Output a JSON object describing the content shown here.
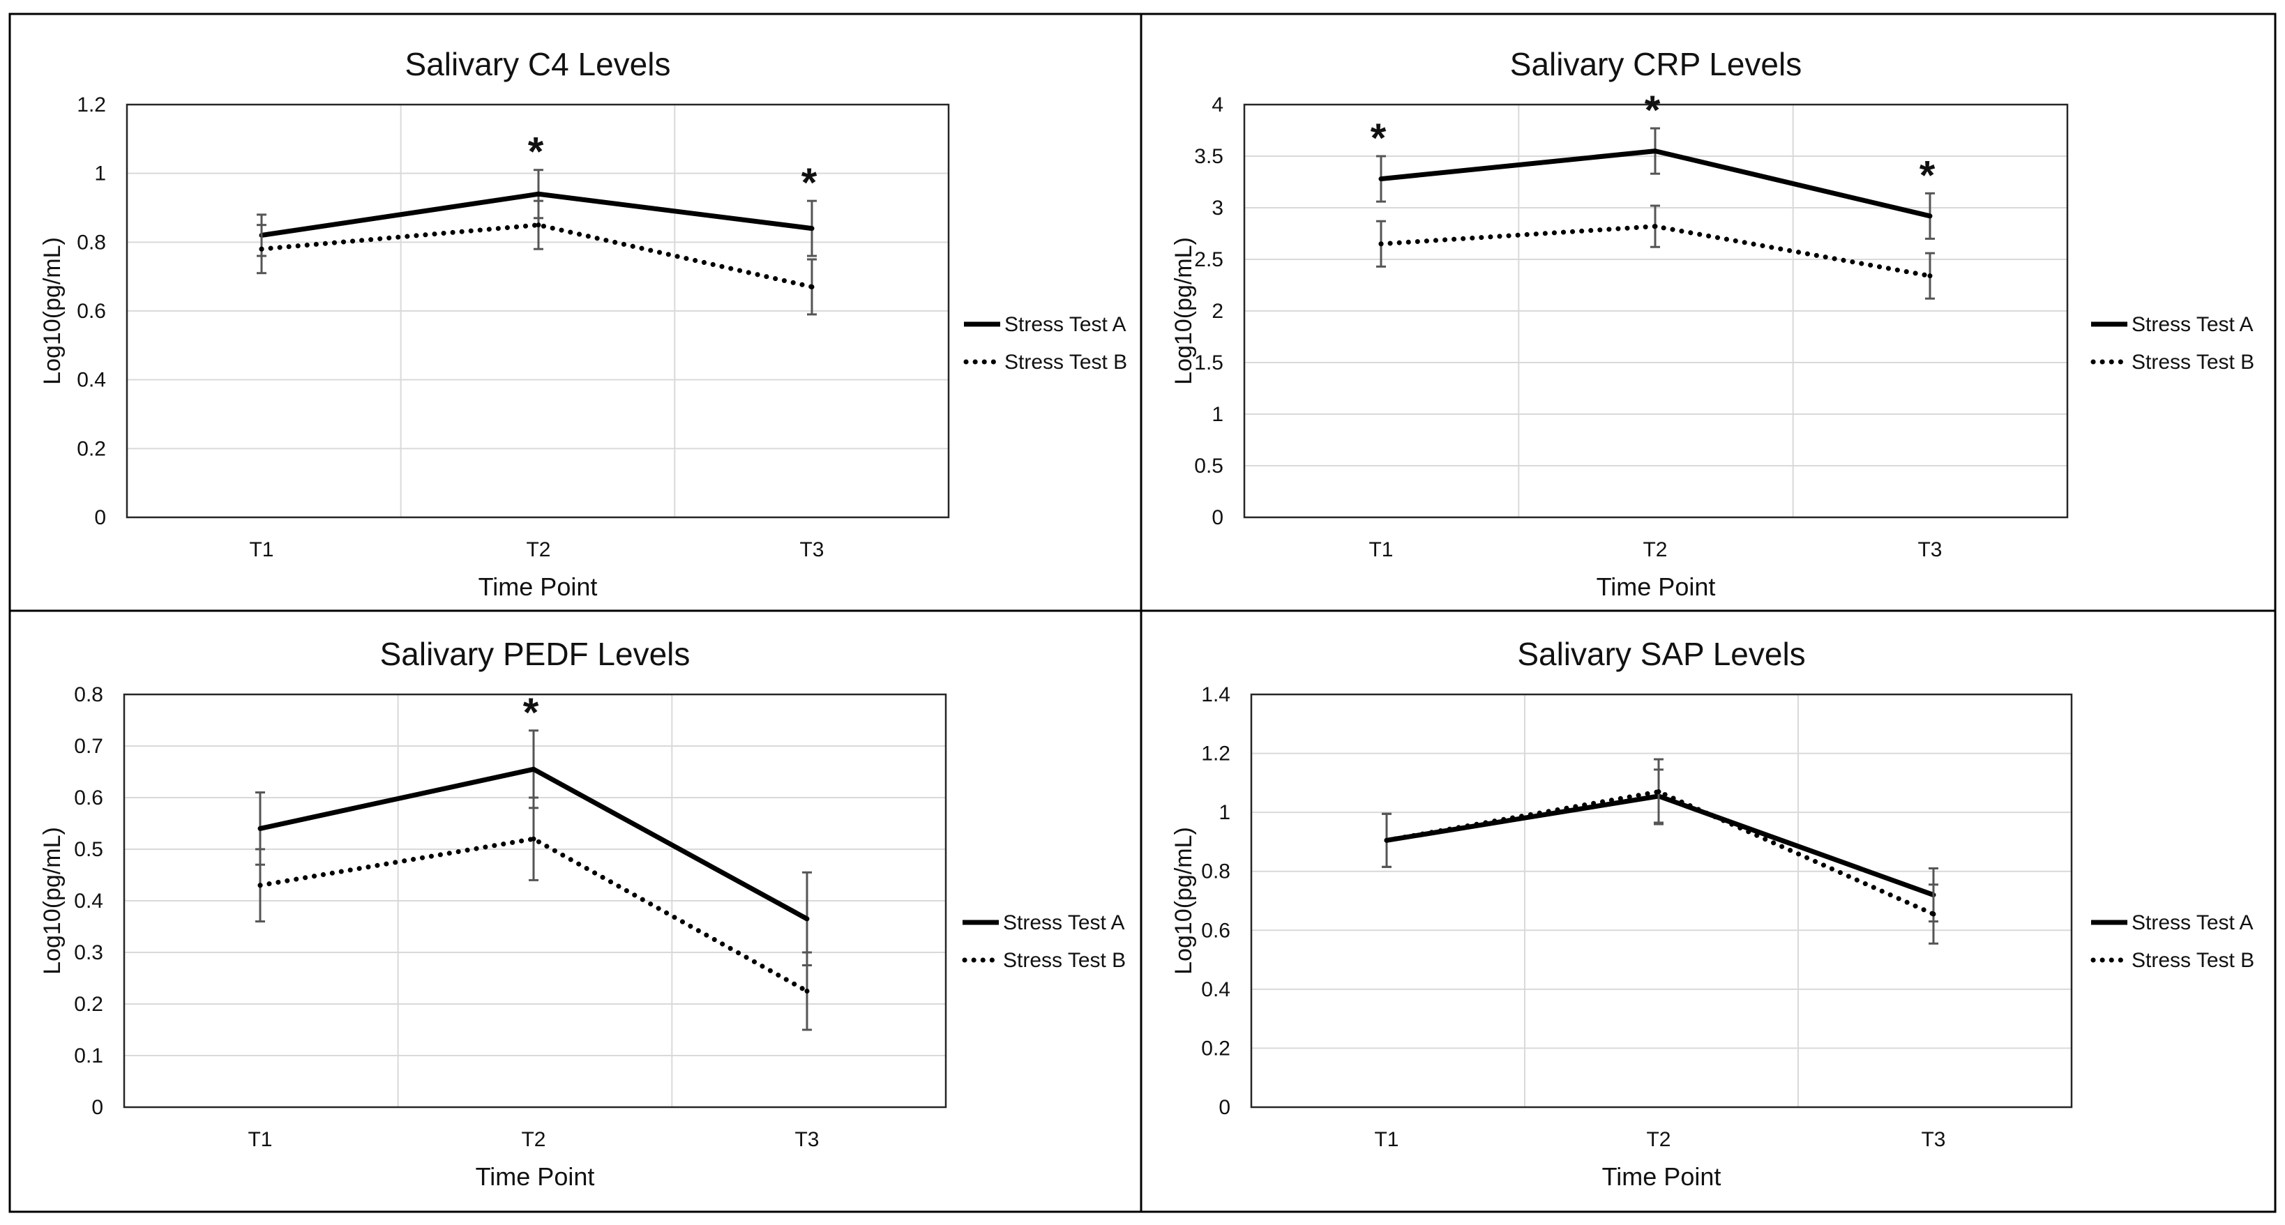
{
  "chart_data": [
    {
      "type": "line",
      "title": "Salivary C4 Levels",
      "xlabel": "Time Point",
      "ylabel": "Log10(pg/mL)",
      "categories": [
        "T1",
        "T2",
        "T3"
      ],
      "ylim": [
        0,
        1.2
      ],
      "yticks": [
        "0",
        "0.2",
        "0.4",
        "0.6",
        "0.8",
        "1",
        "1.2"
      ],
      "grid": true,
      "legend": "right",
      "series": [
        {
          "name": "Stress Test A",
          "style": "solid",
          "values": [
            0.82,
            0.94,
            0.84
          ],
          "errors": [
            0.06,
            0.07,
            0.08
          ]
        },
        {
          "name": "Stress Test B",
          "style": "dotted",
          "values": [
            0.78,
            0.85,
            0.67
          ],
          "errors": [
            0.07,
            0.07,
            0.08
          ]
        }
      ],
      "significance": [
        "",
        "*",
        "*"
      ]
    },
    {
      "type": "line",
      "title": "Salivary CRP Levels",
      "xlabel": "Time Point",
      "ylabel": "Log10(pg/mL)",
      "categories": [
        "T1",
        "T2",
        "T3"
      ],
      "ylim": [
        0,
        4
      ],
      "yticks": [
        "0",
        "0.5",
        "1",
        "1.5",
        "2",
        "2.5",
        "3",
        "3.5",
        "4"
      ],
      "grid": true,
      "legend": "right",
      "series": [
        {
          "name": "Stress Test A",
          "style": "solid",
          "values": [
            3.28,
            3.55,
            2.92
          ],
          "errors": [
            0.22,
            0.22,
            0.22
          ]
        },
        {
          "name": "Stress Test B",
          "style": "dotted",
          "values": [
            2.65,
            2.82,
            2.34
          ],
          "errors": [
            0.22,
            0.2,
            0.22
          ]
        }
      ],
      "significance": [
        "*",
        "*",
        "*"
      ]
    },
    {
      "type": "line",
      "title": "Salivary PEDF Levels",
      "xlabel": "Time Point",
      "ylabel": "Log10(pg/mL)",
      "categories": [
        "T1",
        "T2",
        "T3"
      ],
      "ylim": [
        0,
        0.8
      ],
      "yticks": [
        "0",
        "0.1",
        "0.2",
        "0.3",
        "0.4",
        "0.5",
        "0.6",
        "0.7",
        "0.8"
      ],
      "grid": true,
      "legend": "right",
      "series": [
        {
          "name": "Stress Test A",
          "style": "solid",
          "values": [
            0.54,
            0.655,
            0.365
          ],
          "errors": [
            0.07,
            0.075,
            0.09
          ]
        },
        {
          "name": "Stress Test B",
          "style": "dotted",
          "values": [
            0.43,
            0.52,
            0.225
          ],
          "errors": [
            0.07,
            0.08,
            0.075
          ]
        }
      ],
      "significance": [
        "",
        "*",
        ""
      ]
    },
    {
      "type": "line",
      "title": "Salivary SAP Levels",
      "xlabel": "Time Point",
      "ylabel": "Log10(pg/mL)",
      "categories": [
        "T1",
        "T2",
        "T3"
      ],
      "ylim": [
        0,
        1.4
      ],
      "yticks": [
        "0",
        "0.2",
        "0.4",
        "0.6",
        "0.8",
        "1",
        "1.2",
        "1.4"
      ],
      "grid": true,
      "legend": "right",
      "series": [
        {
          "name": "Stress Test A",
          "style": "solid",
          "values": [
            0.905,
            1.055,
            0.72
          ],
          "errors": [
            0.09,
            0.09,
            0.09
          ]
        },
        {
          "name": "Stress Test B",
          "style": "dotted",
          "values": [
            0.905,
            1.07,
            0.655
          ],
          "errors": [
            0.09,
            0.11,
            0.1
          ]
        }
      ],
      "significance": [
        "",
        "",
        ""
      ]
    }
  ]
}
